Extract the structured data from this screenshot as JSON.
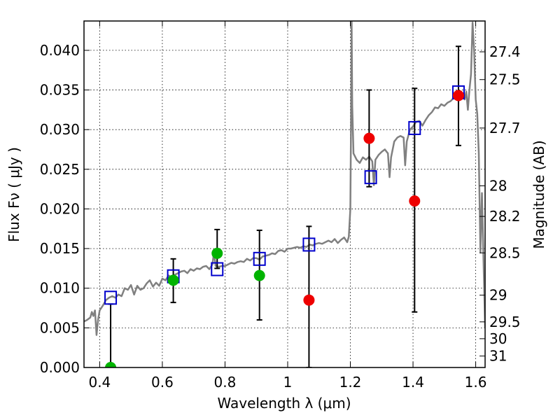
{
  "chart_data": {
    "type": "scatter",
    "xlabel": "Wavelength  λ (μm)",
    "ylabel": "Flux  Fν  ( μJy )",
    "y2label": "Magnitude (AB)",
    "xlim": [
      0.35,
      1.63
    ],
    "ylim": [
      0.0,
      0.0437
    ],
    "grid": true,
    "x_ticks": [
      {
        "value": 0.4,
        "label": "0.4"
      },
      {
        "value": 0.6,
        "label": "0.6"
      },
      {
        "value": 0.8,
        "label": "0.8"
      },
      {
        "value": 1.0,
        "label": "1"
      },
      {
        "value": 1.2,
        "label": "1.2"
      },
      {
        "value": 1.4,
        "label": "1.4"
      },
      {
        "value": 1.6,
        "label": "1.6"
      }
    ],
    "y_ticks": [
      {
        "value": 0.0,
        "label": "0.000"
      },
      {
        "value": 0.005,
        "label": "0.005"
      },
      {
        "value": 0.01,
        "label": "0.010"
      },
      {
        "value": 0.015,
        "label": "0.015"
      },
      {
        "value": 0.02,
        "label": "0.020"
      },
      {
        "value": 0.025,
        "label": "0.025"
      },
      {
        "value": 0.03,
        "label": "0.030"
      },
      {
        "value": 0.035,
        "label": "0.035"
      },
      {
        "value": 0.04,
        "label": "0.040"
      }
    ],
    "y2_ticks": [
      {
        "mag": 27.4,
        "label": "27.4"
      },
      {
        "mag": 27.5,
        "label": "27.5"
      },
      {
        "mag": 27.7,
        "label": "27.7"
      },
      {
        "mag": 28.0,
        "label": "28"
      },
      {
        "mag": 28.2,
        "label": "28.2"
      },
      {
        "mag": 28.5,
        "label": "28.5"
      },
      {
        "mag": 29.0,
        "label": "29"
      },
      {
        "mag": 29.5,
        "label": "29.5"
      },
      {
        "mag": 30.0,
        "label": "30"
      },
      {
        "mag": 31.0,
        "label": "31"
      }
    ],
    "series": [
      {
        "kind": "line",
        "color": "#808080",
        "points": [
          [
            0.35,
            0.0058
          ],
          [
            0.36,
            0.006
          ],
          [
            0.37,
            0.0063
          ],
          [
            0.375,
            0.007
          ],
          [
            0.38,
            0.0065
          ],
          [
            0.385,
            0.0072
          ],
          [
            0.39,
            0.0041
          ],
          [
            0.395,
            0.006
          ],
          [
            0.4,
            0.0072
          ],
          [
            0.41,
            0.0078
          ],
          [
            0.42,
            0.0085
          ],
          [
            0.43,
            0.0088
          ],
          [
            0.44,
            0.009
          ],
          [
            0.45,
            0.0088
          ],
          [
            0.46,
            0.0092
          ],
          [
            0.47,
            0.009
          ],
          [
            0.48,
            0.01
          ],
          [
            0.49,
            0.0098
          ],
          [
            0.5,
            0.0104
          ],
          [
            0.51,
            0.0092
          ],
          [
            0.52,
            0.0103
          ],
          [
            0.53,
            0.0098
          ],
          [
            0.54,
            0.01
          ],
          [
            0.55,
            0.0106
          ],
          [
            0.56,
            0.011
          ],
          [
            0.57,
            0.0102
          ],
          [
            0.58,
            0.0107
          ],
          [
            0.59,
            0.0103
          ],
          [
            0.6,
            0.0112
          ],
          [
            0.61,
            0.011
          ],
          [
            0.62,
            0.0116
          ],
          [
            0.63,
            0.0114
          ],
          [
            0.64,
            0.0117
          ],
          [
            0.65,
            0.0119
          ],
          [
            0.66,
            0.0121
          ],
          [
            0.67,
            0.0122
          ],
          [
            0.68,
            0.0119
          ],
          [
            0.69,
            0.0124
          ],
          [
            0.7,
            0.0122
          ],
          [
            0.71,
            0.0125
          ],
          [
            0.72,
            0.0124
          ],
          [
            0.73,
            0.0127
          ],
          [
            0.74,
            0.0128
          ],
          [
            0.75,
            0.0124
          ],
          [
            0.76,
            0.013
          ],
          [
            0.765,
            0.0146
          ],
          [
            0.77,
            0.0128
          ],
          [
            0.78,
            0.0127
          ],
          [
            0.79,
            0.0128
          ],
          [
            0.8,
            0.0128
          ],
          [
            0.81,
            0.013
          ],
          [
            0.82,
            0.0132
          ],
          [
            0.83,
            0.0131
          ],
          [
            0.84,
            0.0133
          ],
          [
            0.85,
            0.0134
          ],
          [
            0.86,
            0.0133
          ],
          [
            0.87,
            0.0137
          ],
          [
            0.88,
            0.0135
          ],
          [
            0.89,
            0.0138
          ],
          [
            0.9,
            0.0138
          ],
          [
            0.91,
            0.0136
          ],
          [
            0.92,
            0.014
          ],
          [
            0.93,
            0.0141
          ],
          [
            0.94,
            0.0142
          ],
          [
            0.95,
            0.0144
          ],
          [
            0.96,
            0.0143
          ],
          [
            0.97,
            0.0147
          ],
          [
            0.98,
            0.0148
          ],
          [
            0.99,
            0.0146
          ],
          [
            1.0,
            0.015
          ],
          [
            1.01,
            0.015
          ],
          [
            1.02,
            0.0151
          ],
          [
            1.03,
            0.0152
          ],
          [
            1.04,
            0.0151
          ],
          [
            1.05,
            0.0153
          ],
          [
            1.06,
            0.0152
          ],
          [
            1.07,
            0.0155
          ],
          [
            1.08,
            0.0154
          ],
          [
            1.09,
            0.0156
          ],
          [
            1.1,
            0.0157
          ],
          [
            1.11,
            0.0156
          ],
          [
            1.12,
            0.0158
          ],
          [
            1.13,
            0.016
          ],
          [
            1.14,
            0.0158
          ],
          [
            1.15,
            0.0162
          ],
          [
            1.16,
            0.0157
          ],
          [
            1.17,
            0.0161
          ],
          [
            1.18,
            0.0164
          ],
          [
            1.19,
            0.0158
          ],
          [
            1.195,
            0.0165
          ],
          [
            1.2,
            0.02
          ],
          [
            1.202,
            0.03
          ],
          [
            1.204,
            0.044
          ],
          [
            1.206,
            0.033
          ],
          [
            1.21,
            0.027
          ],
          [
            1.22,
            0.0262
          ],
          [
            1.23,
            0.0258
          ],
          [
            1.24,
            0.0265
          ],
          [
            1.25,
            0.0262
          ],
          [
            1.26,
            0.0266
          ],
          [
            1.27,
            0.026
          ],
          [
            1.275,
            0.023
          ],
          [
            1.28,
            0.0262
          ],
          [
            1.29,
            0.0268
          ],
          [
            1.3,
            0.0272
          ],
          [
            1.31,
            0.0275
          ],
          [
            1.32,
            0.027
          ],
          [
            1.325,
            0.024
          ],
          [
            1.33,
            0.0265
          ],
          [
            1.34,
            0.0285
          ],
          [
            1.35,
            0.029
          ],
          [
            1.36,
            0.0292
          ],
          [
            1.37,
            0.029
          ],
          [
            1.375,
            0.0255
          ],
          [
            1.38,
            0.0285
          ],
          [
            1.39,
            0.03
          ],
          [
            1.4,
            0.0304
          ],
          [
            1.41,
            0.031
          ],
          [
            1.42,
            0.0311
          ],
          [
            1.43,
            0.0305
          ],
          [
            1.44,
            0.0312
          ],
          [
            1.45,
            0.0318
          ],
          [
            1.46,
            0.0322
          ],
          [
            1.47,
            0.0328
          ],
          [
            1.48,
            0.0327
          ],
          [
            1.49,
            0.0332
          ],
          [
            1.5,
            0.033
          ],
          [
            1.51,
            0.0334
          ],
          [
            1.52,
            0.0336
          ],
          [
            1.53,
            0.034
          ],
          [
            1.54,
            0.0345
          ],
          [
            1.55,
            0.0346
          ],
          [
            1.56,
            0.0343
          ],
          [
            1.565,
            0.0338
          ],
          [
            1.57,
            0.0348
          ],
          [
            1.575,
            0.0325
          ],
          [
            1.58,
            0.035
          ],
          [
            1.585,
            0.037
          ],
          [
            1.59,
            0.0435
          ],
          [
            1.595,
            0.04
          ],
          [
            1.6,
            0.0338
          ],
          [
            1.605,
            0.032
          ],
          [
            1.61,
            0.027
          ],
          [
            1.615,
            0.0145
          ],
          [
            1.62,
            0.022
          ],
          [
            1.63,
            0.005
          ]
        ]
      },
      {
        "kind": "open-square",
        "color": "#0000cc",
        "points": [
          [
            0.435,
            0.0088
          ],
          [
            0.635,
            0.0115
          ],
          [
            0.775,
            0.0124
          ],
          [
            0.91,
            0.0137
          ],
          [
            1.068,
            0.0155
          ],
          [
            1.265,
            0.024
          ],
          [
            1.405,
            0.0302
          ],
          [
            1.545,
            0.0347
          ]
        ]
      },
      {
        "kind": "filled-circle",
        "color": "#00b300",
        "points": [
          [
            0.435,
            0.0
          ],
          [
            0.635,
            0.011
          ],
          [
            0.775,
            0.0144
          ],
          [
            0.91,
            0.0116
          ]
        ]
      },
      {
        "kind": "filled-circle",
        "color": "#ee0000",
        "points": [
          [
            1.068,
            0.0085
          ],
          [
            1.26,
            0.0289
          ],
          [
            1.405,
            0.021
          ],
          [
            1.545,
            0.0343
          ]
        ]
      }
    ],
    "error_bars": [
      {
        "x": 0.435,
        "low": 0.0,
        "high": 0.008
      },
      {
        "x": 0.635,
        "low": 0.0082,
        "high": 0.0137
      },
      {
        "x": 0.775,
        "low": 0.0125,
        "high": 0.0174
      },
      {
        "x": 0.91,
        "low": 0.006,
        "high": 0.0173
      },
      {
        "x": 1.068,
        "low": 0.0,
        "high": 0.0178
      },
      {
        "x": 1.26,
        "low": 0.0228,
        "high": 0.035
      },
      {
        "x": 1.405,
        "low": 0.007,
        "high": 0.0352
      },
      {
        "x": 1.545,
        "low": 0.028,
        "high": 0.0405
      }
    ]
  }
}
